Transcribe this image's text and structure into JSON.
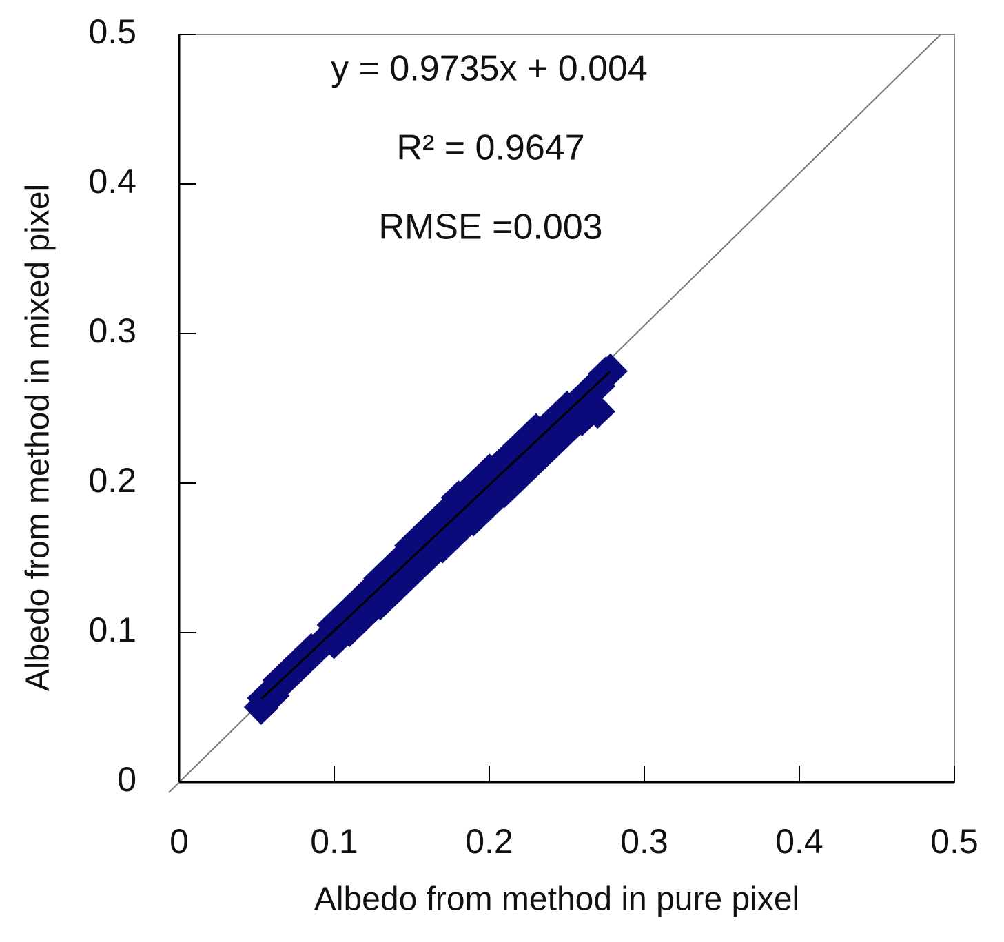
{
  "chart_data": {
    "type": "scatter",
    "xlabel": "Albedo from method in pure pixel",
    "ylabel": "Albedo from method  in mixed pixel",
    "annotations": [
      "y = 0.9735x + 0.004",
      "R² = 0.9647",
      "RMSE =0.003"
    ],
    "trendline": {
      "slope": 0.9735,
      "intercept": 0.004,
      "color": "#000000"
    },
    "xlim": [
      0,
      0.5
    ],
    "ylim": [
      0,
      0.5
    ],
    "xticks": [
      0,
      0.1,
      0.2,
      0.3,
      0.4,
      0.5
    ],
    "yticks": [
      0,
      0.1,
      0.2,
      0.3,
      0.4,
      0.5
    ],
    "series": [
      {
        "color": "#0a0a7a",
        "x": [
          0.053,
          0.055,
          0.06,
          0.065,
          0.07,
          0.075,
          0.08,
          0.085,
          0.09,
          0.095,
          0.1,
          0.1,
          0.105,
          0.11,
          0.11,
          0.115,
          0.12,
          0.12,
          0.125,
          0.13,
          0.13,
          0.135,
          0.14,
          0.14,
          0.145,
          0.15,
          0.15,
          0.155,
          0.16,
          0.16,
          0.165,
          0.17,
          0.17,
          0.175,
          0.18,
          0.18,
          0.185,
          0.19,
          0.19,
          0.195,
          0.2,
          0.2,
          0.205,
          0.21,
          0.21,
          0.215,
          0.22,
          0.22,
          0.225,
          0.23,
          0.23,
          0.235,
          0.24,
          0.24,
          0.245,
          0.25,
          0.25,
          0.255,
          0.26,
          0.26,
          0.265,
          0.27,
          0.27,
          0.275,
          0.278
        ],
        "values": [
          0.05,
          0.056,
          0.058,
          0.068,
          0.07,
          0.078,
          0.08,
          0.088,
          0.09,
          0.096,
          0.105,
          0.094,
          0.108,
          0.115,
          0.102,
          0.118,
          0.125,
          0.112,
          0.128,
          0.136,
          0.12,
          0.135,
          0.146,
          0.13,
          0.145,
          0.158,
          0.14,
          0.155,
          0.168,
          0.15,
          0.165,
          0.178,
          0.158,
          0.174,
          0.19,
          0.168,
          0.186,
          0.198,
          0.176,
          0.195,
          0.208,
          0.186,
          0.205,
          0.215,
          0.195,
          0.212,
          0.225,
          0.205,
          0.228,
          0.235,
          0.215,
          0.23,
          0.24,
          0.225,
          0.245,
          0.25,
          0.235,
          0.252,
          0.256,
          0.243,
          0.262,
          0.265,
          0.248,
          0.273,
          0.275
        ]
      }
    ]
  }
}
